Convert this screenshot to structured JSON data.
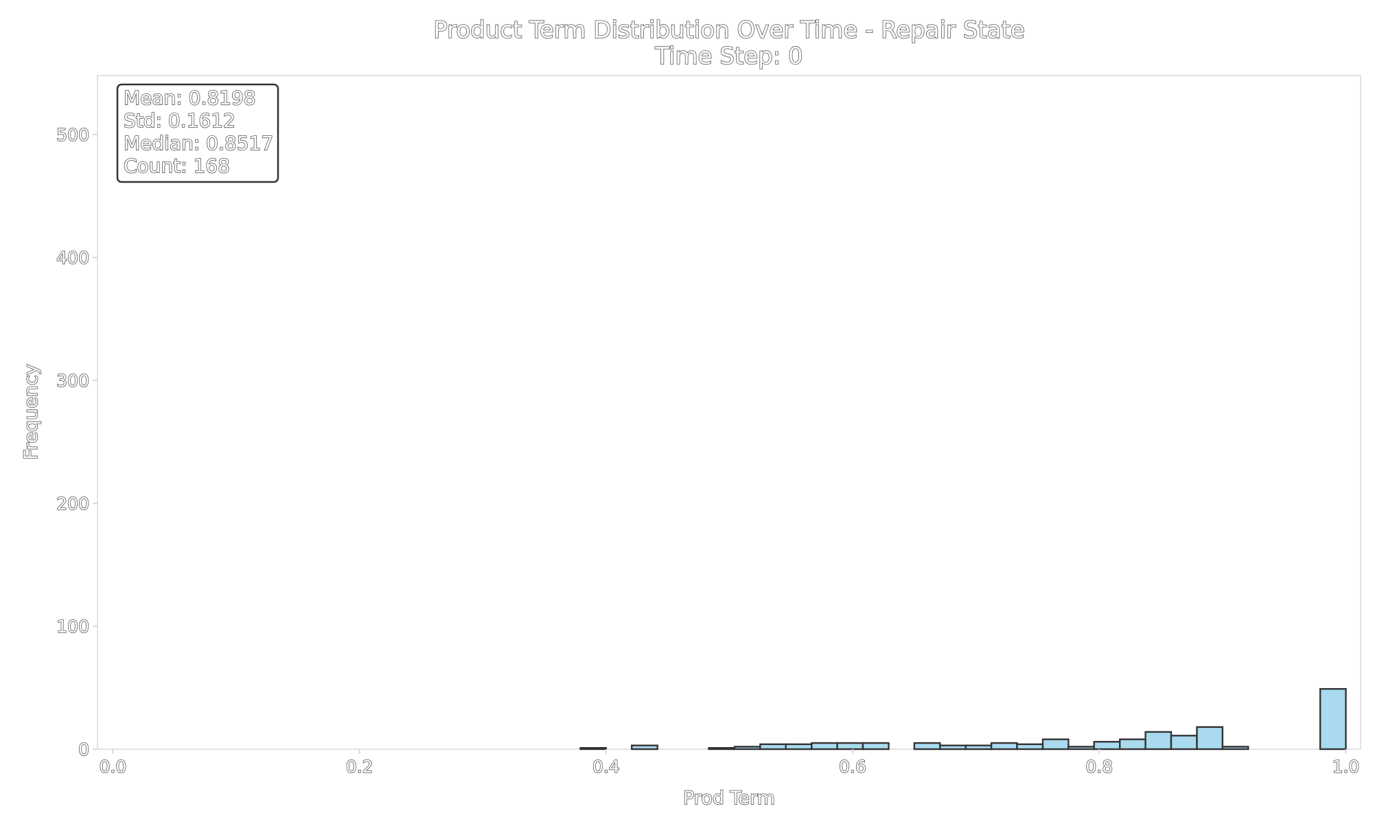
{
  "chart_data": {
    "type": "bar",
    "title": "Product Term Distribution Over Time - Repair State",
    "subtitle": "Time Step: 0",
    "xlabel": "Prod Term",
    "ylabel": "Frequency",
    "xlim": [
      -0.0125,
      1.012
    ],
    "ylim": [
      0,
      548
    ],
    "xticks": [
      "0.0",
      "0.2",
      "0.4",
      "0.6",
      "0.8",
      "1.0"
    ],
    "yticks": [
      "0",
      "100",
      "200",
      "300",
      "400",
      "500"
    ],
    "grid": false,
    "colors": {
      "bar_fill": "#a9daef",
      "bar_edge": "#333333"
    },
    "bins": [
      {
        "x0": 0.3792,
        "x1": 0.4,
        "count": 1
      },
      {
        "x0": 0.4208,
        "x1": 0.4417,
        "count": 3
      },
      {
        "x0": 0.4833,
        "x1": 0.5042,
        "count": 1
      },
      {
        "x0": 0.5042,
        "x1": 0.525,
        "count": 2
      },
      {
        "x0": 0.525,
        "x1": 0.5458,
        "count": 4
      },
      {
        "x0": 0.5458,
        "x1": 0.5667,
        "count": 4
      },
      {
        "x0": 0.5667,
        "x1": 0.5875,
        "count": 5
      },
      {
        "x0": 0.5875,
        "x1": 0.6083,
        "count": 5
      },
      {
        "x0": 0.6083,
        "x1": 0.6292,
        "count": 5
      },
      {
        "x0": 0.65,
        "x1": 0.6708,
        "count": 5
      },
      {
        "x0": 0.6708,
        "x1": 0.6917,
        "count": 3
      },
      {
        "x0": 0.6917,
        "x1": 0.7125,
        "count": 3
      },
      {
        "x0": 0.7125,
        "x1": 0.7333,
        "count": 5
      },
      {
        "x0": 0.7333,
        "x1": 0.7542,
        "count": 4
      },
      {
        "x0": 0.7542,
        "x1": 0.775,
        "count": 8
      },
      {
        "x0": 0.775,
        "x1": 0.7958,
        "count": 2
      },
      {
        "x0": 0.7958,
        "x1": 0.8167,
        "count": 6
      },
      {
        "x0": 0.8167,
        "x1": 0.8375,
        "count": 8
      },
      {
        "x0": 0.8375,
        "x1": 0.8583,
        "count": 14
      },
      {
        "x0": 0.8583,
        "x1": 0.8792,
        "count": 11
      },
      {
        "x0": 0.8792,
        "x1": 0.9,
        "count": 18
      },
      {
        "x0": 0.9,
        "x1": 0.9208,
        "count": 2
      },
      {
        "x0": 0.9792,
        "x1": 1.0,
        "count": 49
      }
    ],
    "annotation": {
      "location": "top-left",
      "lines": [
        "Mean: 0.8198",
        "Std: 0.1612",
        "Median: 0.8517",
        "Count: 168"
      ]
    }
  }
}
